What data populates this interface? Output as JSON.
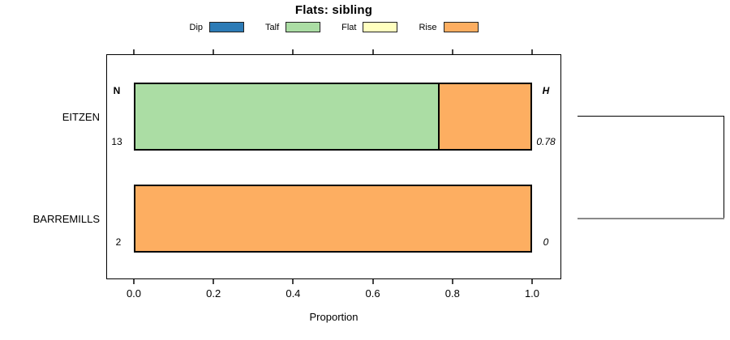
{
  "title": "Flats: sibling",
  "legend": {
    "items": [
      {
        "label": "Dip",
        "color": "#2C7BB6"
      },
      {
        "label": "Talf",
        "color": "#ABDDA4"
      },
      {
        "label": "Flat",
        "color": "#FFFFBF"
      },
      {
        "label": "Rise",
        "color": "#FDAE61"
      }
    ]
  },
  "chart_data": {
    "type": "bar",
    "orientation": "horizontal",
    "stacked": true,
    "title": "Flats: sibling",
    "xlabel": "Proportion",
    "xlim": [
      0,
      1
    ],
    "x_ticks": [
      "0.0",
      "0.2",
      "0.4",
      "0.6",
      "0.8",
      "1.0"
    ],
    "grid": false,
    "legend_position": "top",
    "categories": [
      "Dip",
      "Talf",
      "Flat",
      "Rise"
    ],
    "colors": {
      "Dip": "#2C7BB6",
      "Talf": "#ABDDA4",
      "Flat": "#FFFFBF",
      "Rise": "#FDAE61"
    },
    "left_column_header": "N",
    "right_column_header": "H",
    "rows": [
      {
        "label": "EITZEN",
        "n": "13",
        "h": "0.78",
        "values": {
          "Dip": 0,
          "Talf": 0.77,
          "Flat": 0,
          "Rise": 0.23
        }
      },
      {
        "label": "BARREMILLS",
        "n": "2",
        "h": "0",
        "values": {
          "Dip": 0,
          "Talf": 0,
          "Flat": 0,
          "Rise": 1.0
        }
      }
    ],
    "dendrogram": {
      "type": "bracket",
      "side": "right",
      "connects": [
        "EITZEN",
        "BARREMILLS"
      ]
    }
  }
}
